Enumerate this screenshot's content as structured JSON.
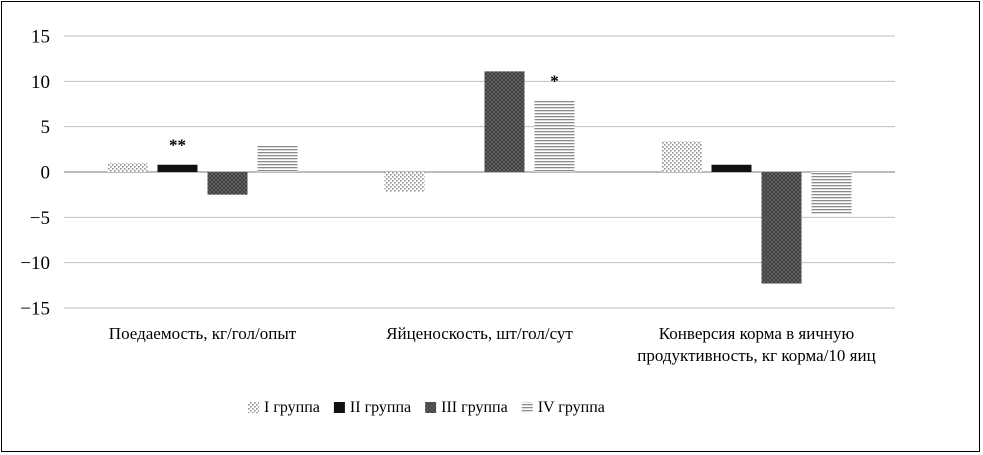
{
  "chart_data": {
    "type": "bar",
    "title": "",
    "xlabel": "",
    "ylabel": "",
    "ylim": [
      -15,
      15
    ],
    "yticks": [
      15,
      10,
      5,
      0,
      -5,
      -10,
      -15
    ],
    "ytick_labels": [
      "15",
      "10",
      "5",
      "0",
      "−5",
      "−10",
      "−15"
    ],
    "grid": true,
    "legend_position": "bottom",
    "categories": [
      [
        "Поедаемость, кг/гол/опыт"
      ],
      [
        "Яйценоскость, шт/гол/сут"
      ],
      [
        "Конверсия корма в яичную",
        "продуктивность, кг корма/10 яиц"
      ]
    ],
    "series": [
      {
        "name": "I группа",
        "values": [
          1.0,
          -2.2,
          3.4
        ],
        "pattern": "dots"
      },
      {
        "name": "II группа",
        "values": [
          0.8,
          0.0,
          0.8
        ],
        "pattern": "solid"
      },
      {
        "name": "III группа",
        "values": [
          -2.5,
          11.1,
          -12.3
        ],
        "pattern": "crosshatch"
      },
      {
        "name": "IV группа",
        "values": [
          2.9,
          7.9,
          -4.6
        ],
        "pattern": "hlines"
      }
    ],
    "annotations": [
      {
        "text": "**",
        "category": 0,
        "series": 1
      },
      {
        "text": "*",
        "category": 1,
        "series": 3
      }
    ],
    "colors": {
      "solid": "#111111",
      "crosshatch": "#6a6a6a",
      "dots": "#9a9a9a",
      "hlines": "#8a8a8a",
      "grid": "#bfbfbf"
    }
  }
}
